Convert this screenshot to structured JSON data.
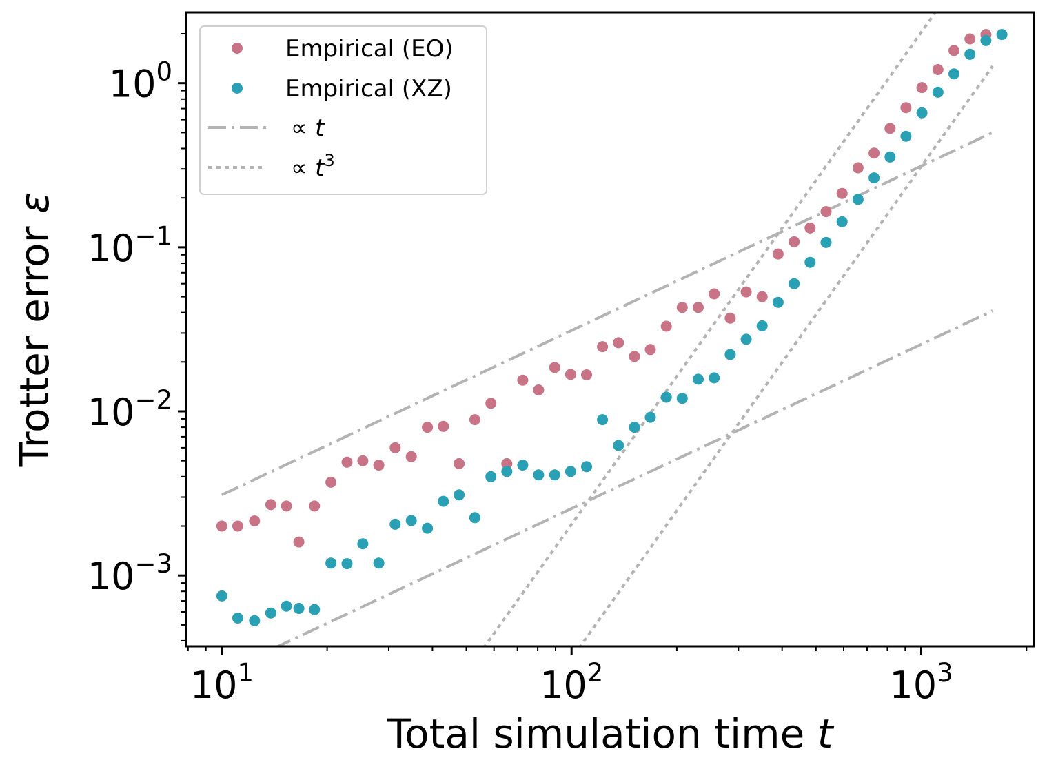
{
  "chart_data": {
    "type": "scatter",
    "xlabel": "Total simulation time",
    "xlabel_var": "t",
    "ylabel": "Trotter error",
    "ylabel_var": "ε",
    "xscale": "log",
    "yscale": "log",
    "xlim": [
      7.9,
      2100
    ],
    "ylim": [
      0.00037,
      2.7
    ],
    "grid": false,
    "legend_position": "top-left",
    "x_ticks": [
      {
        "value": 10,
        "base": "10",
        "exp": "1"
      },
      {
        "value": 100,
        "base": "10",
        "exp": "2"
      },
      {
        "value": 1000,
        "base": "10",
        "exp": "3"
      }
    ],
    "y_ticks": [
      {
        "value": 0.001,
        "base": "10",
        "exp": "−3"
      },
      {
        "value": 0.01,
        "base": "10",
        "exp": "−2"
      },
      {
        "value": 0.1,
        "base": "10",
        "exp": "−1"
      },
      {
        "value": 1,
        "base": "10",
        "exp": "0"
      }
    ],
    "legend": [
      {
        "label": "Empirical (EO)",
        "marker": "dot",
        "color": "#c97486"
      },
      {
        "label": "Empirical (XZ)",
        "marker": "dot",
        "color": "#2aa0b4"
      },
      {
        "label": "∝ t",
        "prefix": "∝ ",
        "var": "t",
        "sup": "",
        "marker": "dashdot",
        "color": "#b3b3b3"
      },
      {
        "label": "∝ t^3",
        "prefix": "∝ ",
        "var": "t",
        "sup": "3",
        "marker": "dotted",
        "color": "#b3b3b3"
      }
    ],
    "series": [
      {
        "name": "Empirical (EO)",
        "color": "#c97486",
        "x": [
          10.0,
          11.1,
          12.4,
          13.8,
          15.3,
          16.6,
          18.4,
          20.5,
          22.8,
          25.3,
          28.1,
          31.3,
          34.8,
          38.7,
          43.0,
          47.7,
          52.9,
          58.8,
          65.3,
          72.5,
          80.5,
          89.5,
          99.4,
          110.4,
          122.6,
          136.2,
          151.3,
          168.0,
          186.6,
          207.3,
          230.3,
          255.8,
          284.2,
          315.8,
          350.8,
          389.7,
          433.1,
          481.1,
          534.5,
          593.8,
          659.7,
          732.9,
          814.2,
          904.6,
          1005.0,
          1116.6,
          1240.5,
          1378.2,
          1531.2
        ],
        "y": [
          0.002,
          0.002,
          0.00215,
          0.0027,
          0.00265,
          0.0016,
          0.00265,
          0.0037,
          0.0049,
          0.005,
          0.0047,
          0.006,
          0.0053,
          0.008,
          0.0081,
          0.0048,
          0.0089,
          0.0112,
          0.0048,
          0.0155,
          0.0135,
          0.0185,
          0.0168,
          0.0167,
          0.0248,
          0.0262,
          0.0216,
          0.0238,
          0.033,
          0.043,
          0.043,
          0.052,
          0.037,
          0.0535,
          0.05,
          0.091,
          0.108,
          0.131,
          0.165,
          0.213,
          0.305,
          0.375,
          0.53,
          0.71,
          0.94,
          1.21,
          1.58,
          1.86,
          1.98
        ]
      },
      {
        "name": "Empirical (XZ)",
        "color": "#2aa0b4",
        "x": [
          10.0,
          11.1,
          12.4,
          13.8,
          15.3,
          16.6,
          18.4,
          20.5,
          22.8,
          25.3,
          28.1,
          31.3,
          34.8,
          38.7,
          43.0,
          47.7,
          52.9,
          58.8,
          65.3,
          72.5,
          80.5,
          89.5,
          99.4,
          110.4,
          122.6,
          136.2,
          151.3,
          168.0,
          186.6,
          207.3,
          230.3,
          255.8,
          284.2,
          315.8,
          350.8,
          389.7,
          433.1,
          481.1,
          534.5,
          593.8,
          659.7,
          732.9,
          814.2,
          904.6,
          1005.0,
          1116.6,
          1240.5,
          1378.2,
          1531.2,
          1701.2
        ],
        "y": [
          0.00075,
          0.00055,
          0.00053,
          0.00059,
          0.00065,
          0.00063,
          0.00062,
          0.00119,
          0.00118,
          0.00156,
          0.00119,
          0.00205,
          0.00216,
          0.00194,
          0.00283,
          0.0031,
          0.00225,
          0.004,
          0.0043,
          0.0047,
          0.0041,
          0.0041,
          0.0043,
          0.0046,
          0.0089,
          0.0062,
          0.008,
          0.0092,
          0.0122,
          0.012,
          0.0157,
          0.016,
          0.0222,
          0.0275,
          0.0332,
          0.0462,
          0.06,
          0.081,
          0.107,
          0.143,
          0.196,
          0.265,
          0.355,
          0.475,
          0.66,
          0.88,
          1.14,
          1.5,
          1.82,
          1.98
        ]
      },
      {
        "name": "∝ t",
        "style": "dashdot",
        "color": "#b3b3b3",
        "x": [
          10,
          1600
        ],
        "y": [
          0.0031,
          0.5
        ]
      },
      {
        "name": "∝ t",
        "style": "dashdot",
        "color": "#b3b3b3",
        "x": [
          14.1,
          1600
        ],
        "y": [
          0.00036,
          0.041
        ]
      },
      {
        "name": "∝ t^3",
        "style": "dotted",
        "color": "#b3b3b3",
        "x": [
          56,
          1190
        ],
        "y": [
          0.00036,
          3.44
        ]
      },
      {
        "name": "∝ t^3",
        "style": "dotted",
        "color": "#b3b3b3",
        "x": [
          105,
          1600
        ],
        "y": [
          0.00036,
          1.27
        ]
      }
    ]
  }
}
